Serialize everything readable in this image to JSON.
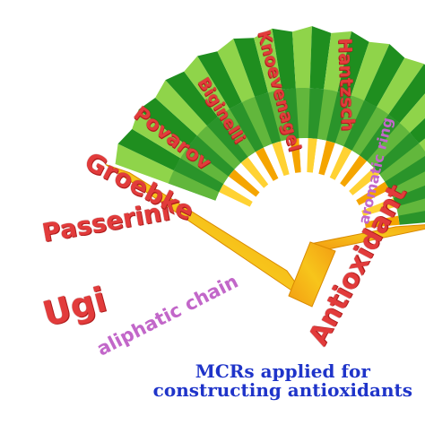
{
  "reactions": [
    "Ugi",
    "Passerini",
    "Groebke",
    "Povarov",
    "Biginelli",
    "Knoevenagel",
    "Hantzsch"
  ],
  "bands": {
    "outer": "aliphatic chain",
    "inner": "aromatic ring",
    "handle": "Antioxidant"
  },
  "caption": {
    "line1": "MCRs applied for",
    "line2": "constructing antioxidants"
  },
  "colors": {
    "fan_green_dark": "#1f8e1f",
    "fan_green_light": "#8fd44a",
    "rib_yellow": "#ffd233",
    "rib_orange": "#f5a500",
    "band_orange": "#f39c12",
    "band_gold": "#f7c51b",
    "reaction_text": "#e23b3b",
    "band_text": "#c267c9",
    "caption_text": "#1f34c9"
  }
}
